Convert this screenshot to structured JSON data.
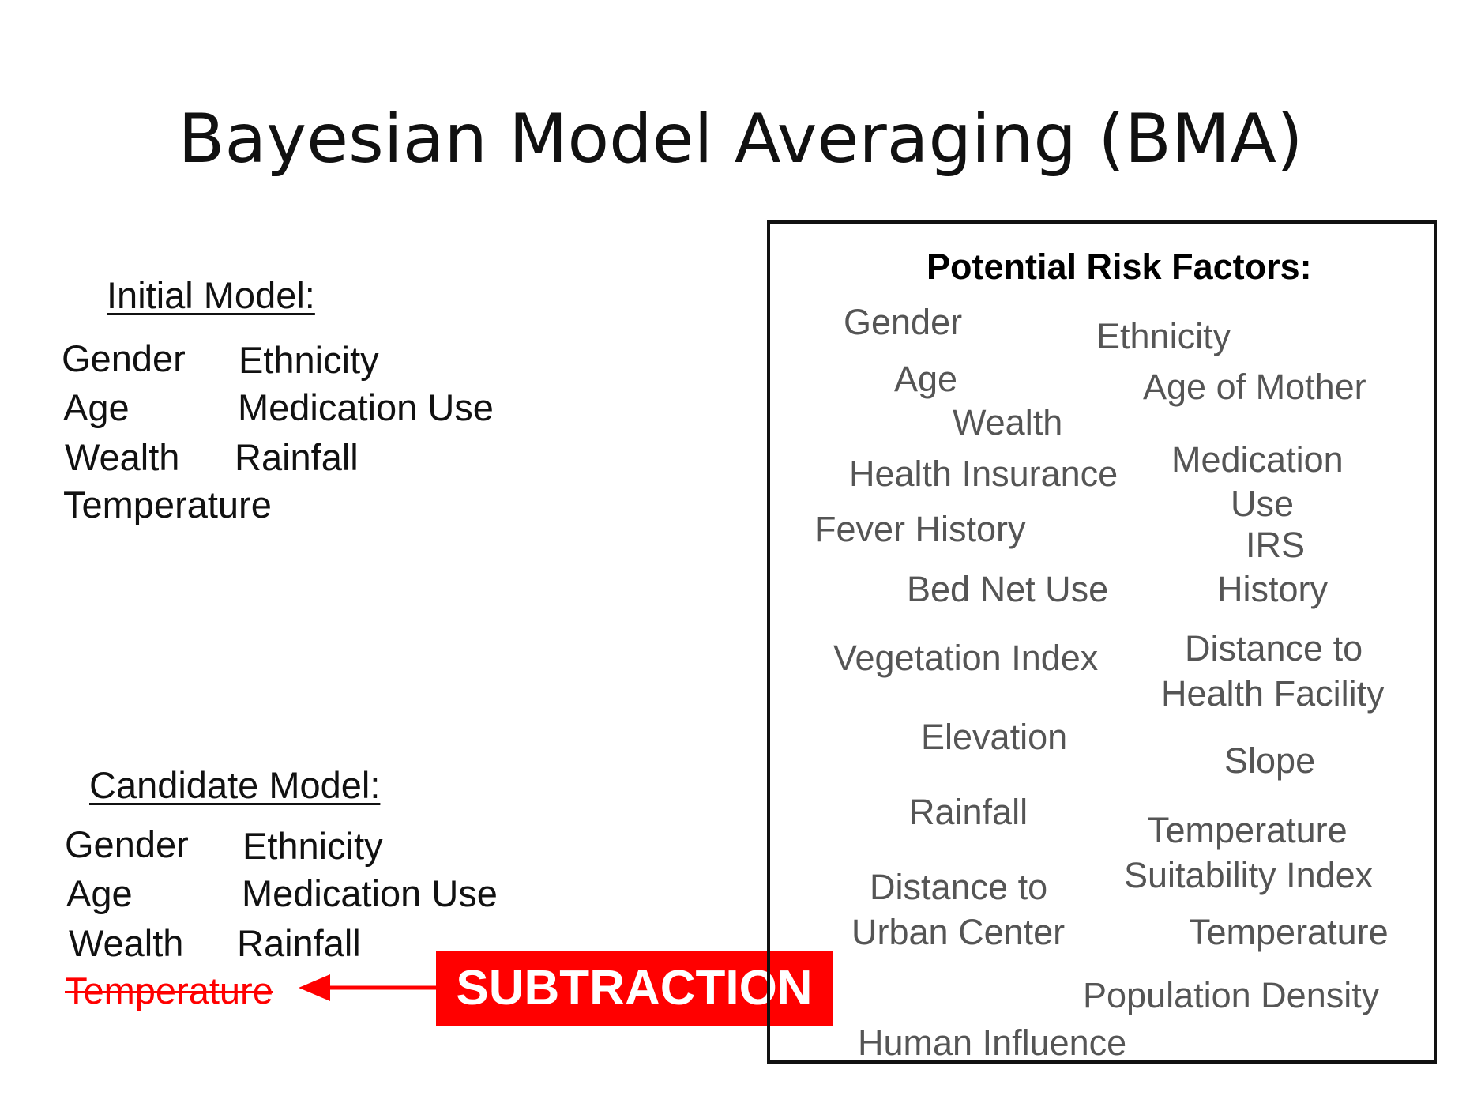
{
  "title": "Bayesian Model Averaging (BMA)",
  "initial_model": {
    "heading": "Initial Model:",
    "items": [
      "Gender",
      "Ethnicity",
      "Age",
      "Medication Use",
      "Wealth",
      "Rainfall",
      "Temperature"
    ]
  },
  "candidate_model": {
    "heading": "Candidate Model:",
    "items": [
      "Gender",
      "Ethnicity",
      "Age",
      "Medication Use",
      "Wealth",
      "Rainfall"
    ],
    "removed_item": "Temperature"
  },
  "operation": {
    "label": "SUBTRACTION",
    "color": "#ff0000"
  },
  "risk_factors": {
    "title": "Potential Risk Factors:",
    "items": [
      "Gender",
      "Ethnicity",
      "Age",
      "Age of Mother",
      "Wealth",
      "Health Insurance",
      "Medication",
      "Use",
      "Fever History",
      "IRS",
      "Bed Net Use",
      "History",
      "Vegetation Index",
      "Distance to",
      "Health Facility",
      "Elevation",
      "Slope",
      "Rainfall",
      "Temperature",
      "Suitability Index",
      "Distance to",
      "Urban Center",
      "Temperature",
      "Population Density",
      "Human Influence"
    ]
  }
}
